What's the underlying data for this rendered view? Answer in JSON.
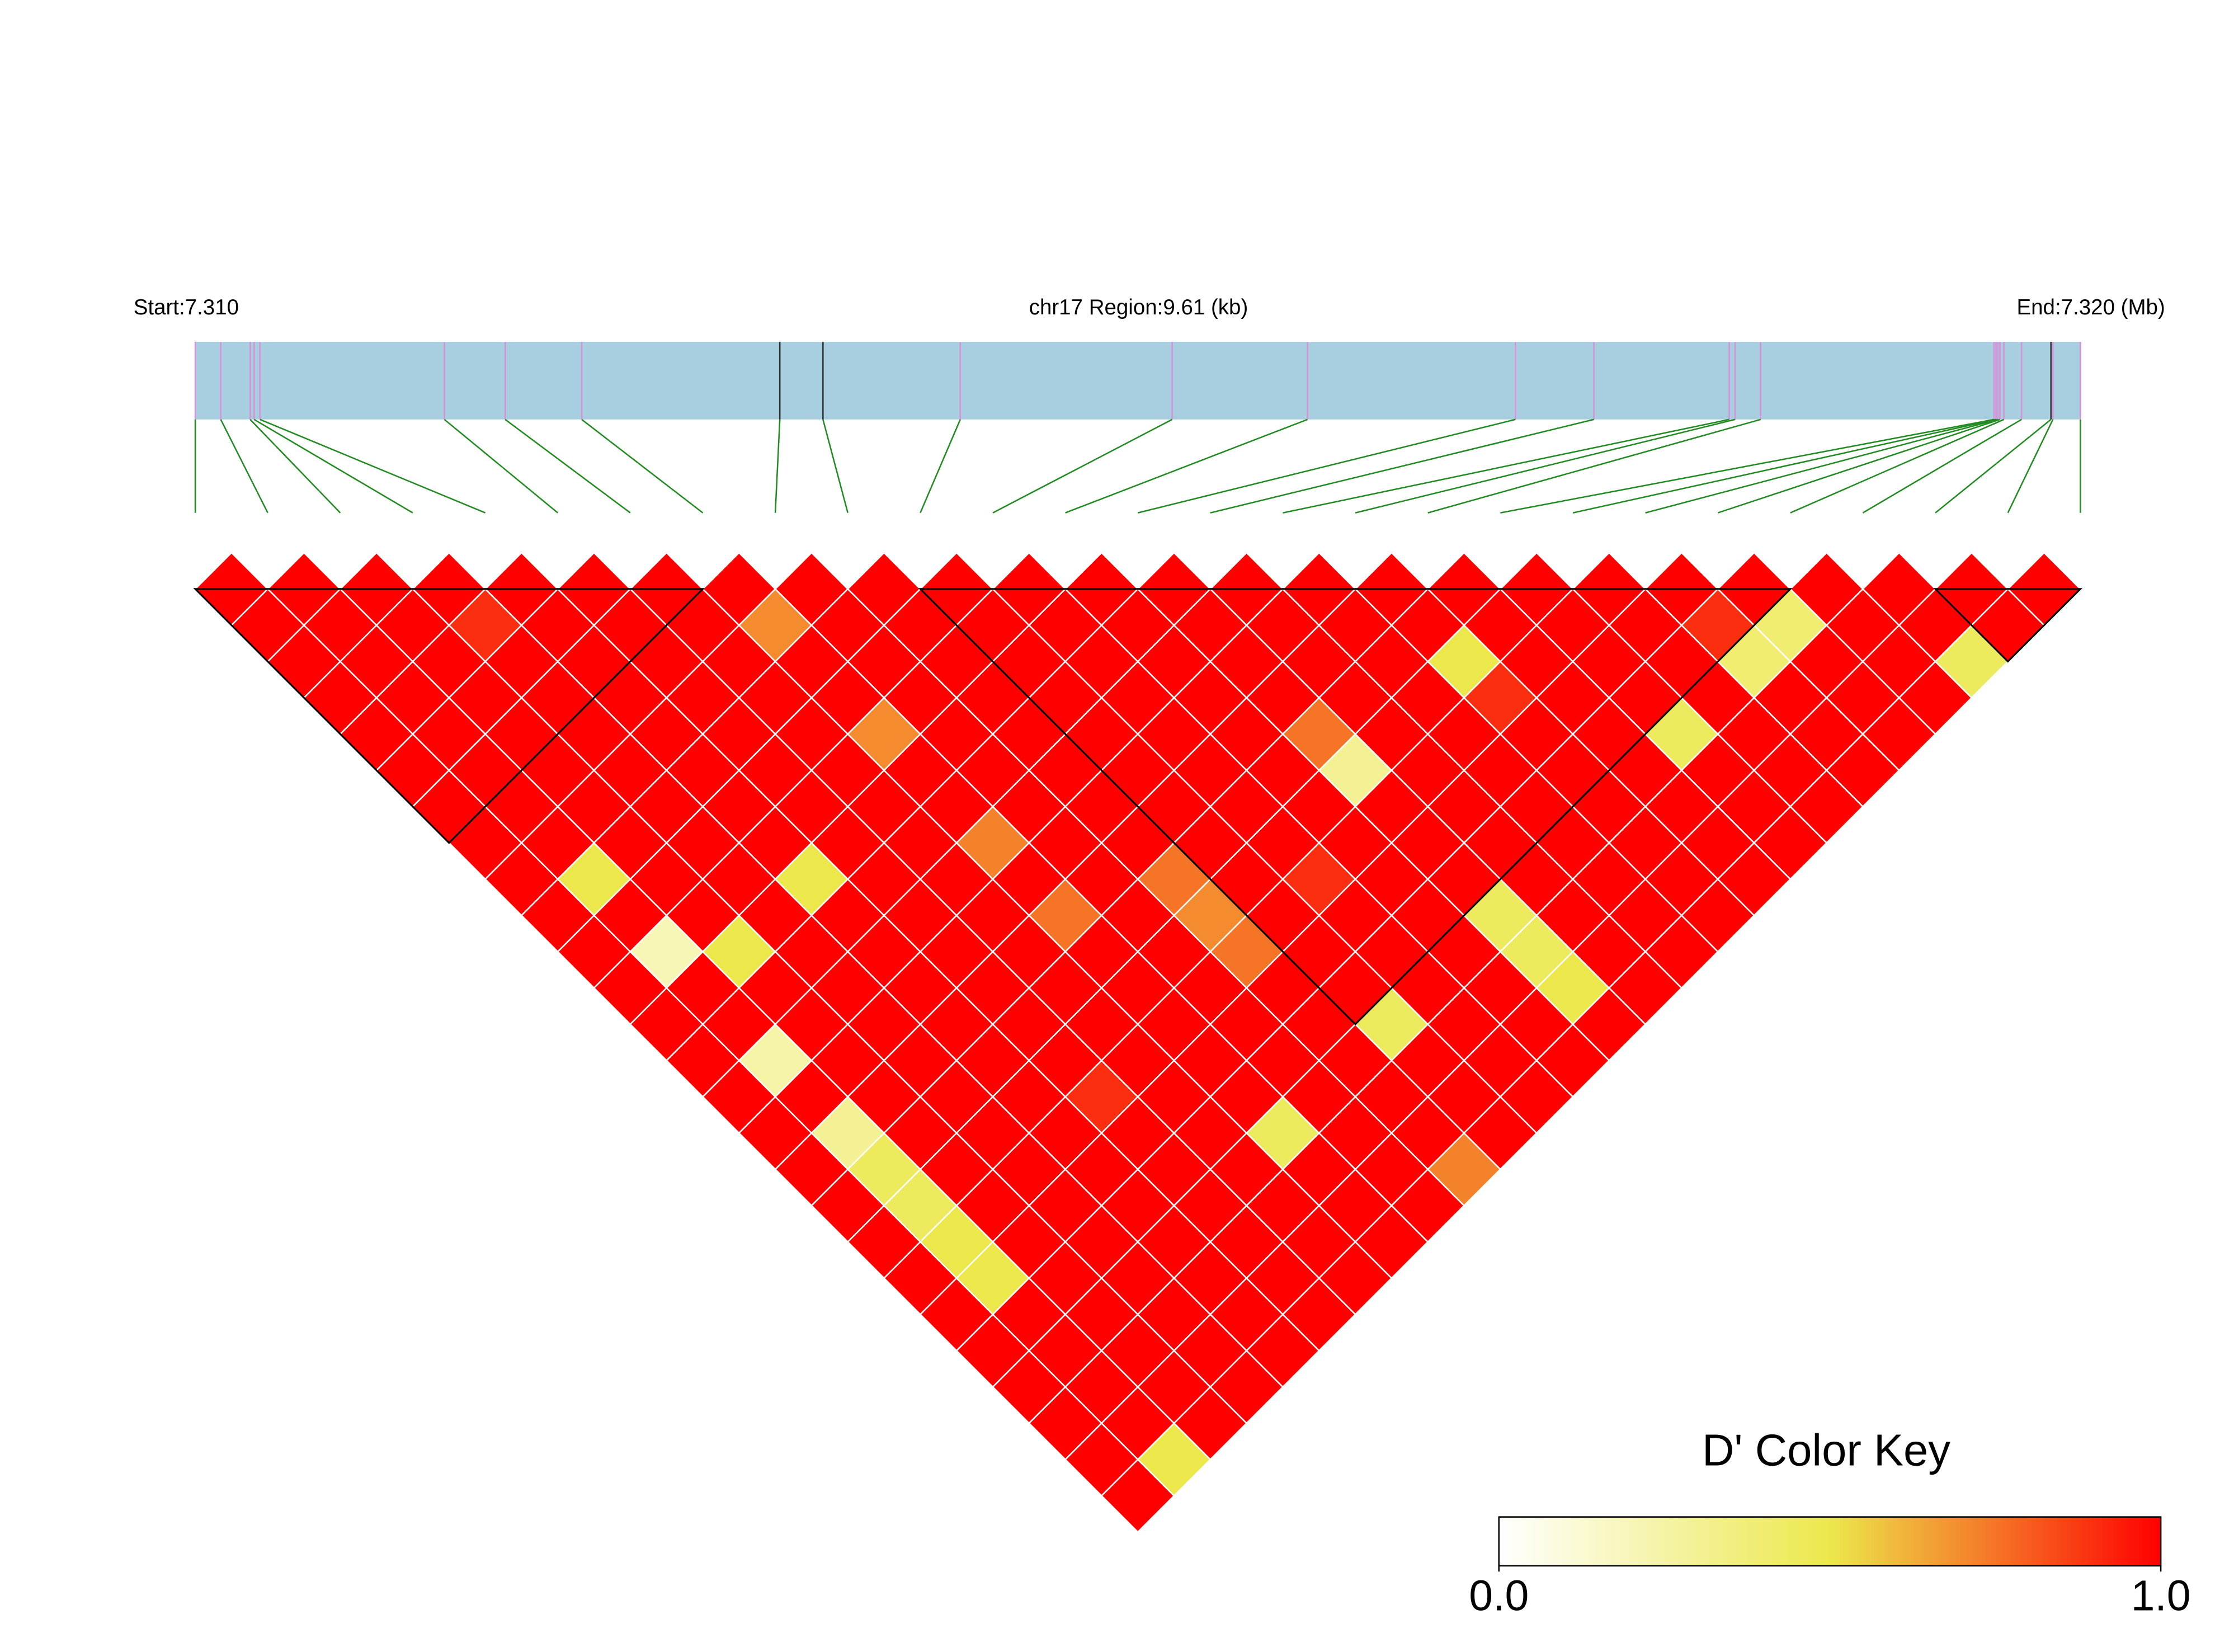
{
  "chart_data": {
    "type": "ld_heatmap",
    "start_label": "Start:7.310",
    "region_label": "chr17 Region:9.61 (kb)",
    "end_label": "End:7.320 (Mb)",
    "xlim": [
      0,
      9.61
    ],
    "bar_color": "#a8cfe0",
    "connector_color": "#228b22",
    "snp_positions_kb": [
      0,
      0.13,
      0.28,
      0.3,
      0.33,
      1.27,
      1.58,
      1.97,
      2.98,
      3.2,
      3.9,
      4.98,
      5.67,
      6.73,
      7.13,
      7.82,
      7.85,
      7.98,
      9.17,
      9.18,
      9.19,
      9.2,
      9.22,
      9.31,
      9.46,
      9.47,
      9.61
    ],
    "snp_line_colors": [
      "#d98fd9",
      "#d98fd9",
      "#d98fd9",
      "#d98fd9",
      "#d98fd9",
      "#d98fd9",
      "#d98fd9",
      "#d98fd9",
      "#333333",
      "#333333",
      "#d98fd9",
      "#d98fd9",
      "#d98fd9",
      "#d98fd9",
      "#d98fd9",
      "#d98fd9",
      "#d98fd9",
      "#d98fd9",
      "#d98fd9",
      "#d98fd9",
      "#d98fd9",
      "#d98fd9",
      "#d98fd9",
      "#d98fd9",
      "#333333",
      "#d98fd9",
      "#d98fd9"
    ],
    "dprime": [
      [
        1,
        1,
        1,
        1,
        1,
        1,
        1,
        1,
        1,
        1,
        1,
        1,
        1,
        1,
        1,
        1,
        1,
        1,
        1,
        1,
        1,
        1,
        1,
        1,
        1,
        1
      ],
      [
        1,
        1,
        1,
        1,
        1,
        1,
        1,
        1,
        0.5,
        1,
        0.2,
        1,
        1,
        0.25,
        1,
        0.3,
        0.45,
        0.45,
        0.5,
        0.5,
        1,
        1,
        1,
        1,
        0.5
      ],
      [
        1,
        1,
        1,
        1,
        1,
        1,
        1,
        1,
        1,
        1,
        0.5,
        1,
        1,
        1,
        1,
        1,
        1,
        1,
        1,
        1,
        1,
        1,
        1,
        1
      ],
      [
        1,
        0.9,
        1,
        1,
        1,
        1,
        1,
        1,
        1,
        1,
        1,
        1,
        1,
        1,
        1,
        1,
        1,
        1,
        1,
        1,
        1,
        1,
        1
      ],
      [
        1,
        1,
        1,
        1,
        1,
        1,
        1,
        1,
        0.5,
        1,
        1,
        1,
        1,
        1,
        1,
        1,
        1,
        1,
        1,
        1,
        1,
        1
      ],
      [
        1,
        1,
        1,
        1,
        1,
        1,
        1,
        1,
        1,
        1,
        1,
        1,
        1,
        1,
        0.9,
        1,
        1,
        1,
        1,
        1,
        1
      ],
      [
        1,
        1,
        1,
        1,
        1,
        1,
        1,
        1,
        1,
        1,
        1,
        1,
        1,
        1,
        1,
        1,
        1,
        1,
        1,
        1
      ],
      [
        1,
        0.7,
        1,
        1,
        0.7,
        1,
        1,
        0.72,
        1,
        0.75,
        1,
        1,
        1,
        1,
        1,
        0.45,
        1,
        1,
        1
      ],
      [
        1,
        1,
        1,
        1,
        1,
        1,
        1,
        1,
        1,
        1,
        1,
        1,
        1,
        1,
        1,
        1,
        1,
        1
      ],
      [
        1,
        1,
        1,
        1,
        1,
        1,
        1,
        1,
        0.75,
        0.7,
        0.75,
        1,
        1,
        1,
        1,
        1,
        0.72
      ],
      [
        1,
        1,
        1,
        1,
        1,
        1,
        1,
        1,
        1,
        1,
        1,
        1,
        0.45,
        1,
        1,
        1
      ],
      [
        1,
        1,
        1,
        1,
        1,
        1,
        1,
        1,
        0.9,
        1,
        1,
        1,
        1,
        1,
        1
      ],
      [
        1,
        1,
        1,
        1,
        1,
        1,
        1,
        1,
        1,
        1,
        1,
        1,
        1,
        1
      ],
      [
        1,
        1,
        1,
        1,
        0.75,
        0.3,
        1,
        1,
        1,
        0.45,
        0.45,
        0.5,
        1
      ],
      [
        1,
        1,
        1,
        1,
        1,
        1,
        1,
        1,
        1,
        1,
        1,
        1
      ],
      [
        1,
        1,
        1,
        1,
        1,
        1,
        1,
        1,
        1,
        1,
        1
      ],
      [
        1,
        1,
        0.5,
        0.9,
        1,
        1,
        1,
        1,
        1,
        1
      ],
      [
        1,
        1,
        1,
        1,
        1,
        1,
        1,
        1,
        1
      ],
      [
        1,
        1,
        1,
        1,
        0.45,
        1,
        1,
        1
      ],
      [
        1,
        1,
        1,
        1,
        1,
        1,
        1
      ],
      [
        1,
        0.9,
        0.4,
        1,
        1,
        1
      ],
      [
        1,
        0.4,
        1,
        1,
        1
      ],
      [
        1,
        1,
        1,
        1
      ],
      [
        1,
        1,
        0.45
      ],
      [
        1,
        1
      ],
      [
        1
      ]
    ],
    "blocks": [
      [
        0,
        7
      ],
      [
        10,
        22
      ],
      [
        24,
        26
      ]
    ],
    "colorscale": [
      [
        0,
        "#ffffff"
      ],
      [
        0.5,
        "#ece84c"
      ],
      [
        1,
        "#ff0000"
      ]
    ],
    "key_title": "D' Color Key",
    "key_lim": [
      0,
      1
    ],
    "key_ticks": [
      {
        "value": 0,
        "label": "0.0"
      },
      {
        "value": 1,
        "label": "1.0"
      }
    ]
  }
}
